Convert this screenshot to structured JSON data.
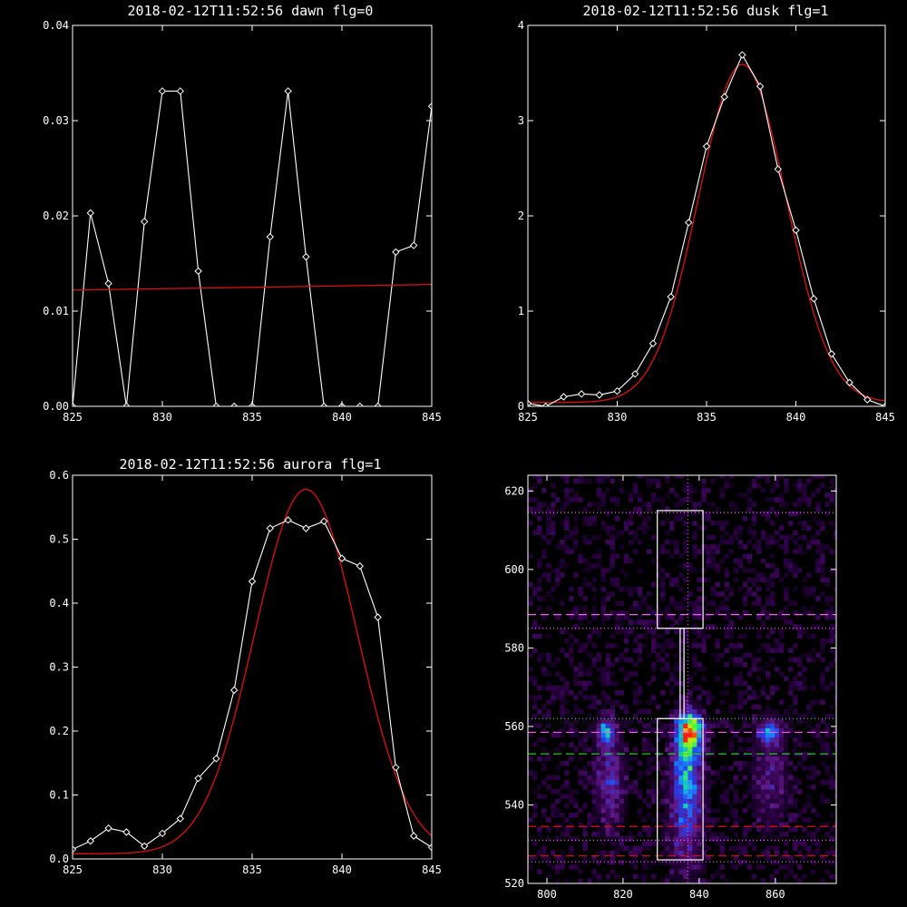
{
  "colors": {
    "background": "#000000",
    "foreground": "#ffffff",
    "fit": "#e01010",
    "green": "#22dd22",
    "magenta": "#ff55ff"
  },
  "chart_data": [
    {
      "type": "line",
      "title": "2018-02-12T11:52:56 dawn flg=0",
      "xlim": [
        825,
        845
      ],
      "ylim": [
        0,
        0.04
      ],
      "xticks": [
        825,
        830,
        835,
        840,
        845
      ],
      "yticks": [
        0,
        0.01,
        0.02,
        0.03,
        0.04
      ],
      "ytick_labels": [
        "0.00",
        "0.01",
        "0.02",
        "0.03",
        "0.04"
      ],
      "series": [
        {
          "kind": "data",
          "color": "#ffffff",
          "marker": "diamond",
          "x": [
            825,
            826,
            827,
            828,
            829,
            830,
            831,
            832,
            833,
            834,
            835,
            836,
            837,
            838,
            839,
            840,
            841,
            842,
            843,
            844,
            845
          ],
          "y": [
            0.0,
            0.0203,
            0.0129,
            0.0,
            0.0194,
            0.0331,
            0.0331,
            0.0142,
            0.0,
            0.0,
            0.0,
            0.0178,
            0.0331,
            0.0157,
            0.0,
            0.0,
            0.0,
            0.0,
            0.0162,
            0.0169,
            0.0315
          ]
        },
        {
          "kind": "fit",
          "color": "#e01010",
          "x": [
            825,
            845
          ],
          "y": [
            0.0122,
            0.0128
          ]
        }
      ]
    },
    {
      "type": "line",
      "title": "2018-02-12T11:52:56 dusk flg=1",
      "xlim": [
        825,
        845
      ],
      "ylim": [
        0,
        4
      ],
      "xticks": [
        825,
        830,
        835,
        840,
        845
      ],
      "yticks": [
        0,
        1,
        2,
        3,
        4
      ],
      "ytick_labels": [
        "0",
        "1",
        "2",
        "3",
        "4"
      ],
      "series": [
        {
          "kind": "data",
          "color": "#ffffff",
          "marker": "diamond",
          "x": [
            825,
            826,
            827,
            828,
            829,
            830,
            831,
            832,
            833,
            834,
            835,
            836,
            837,
            838,
            839,
            840,
            841,
            842,
            843,
            844,
            845
          ],
          "y": [
            0.03,
            0.0,
            0.1,
            0.13,
            0.12,
            0.16,
            0.34,
            0.66,
            1.15,
            1.93,
            2.73,
            3.25,
            3.69,
            3.36,
            2.49,
            1.85,
            1.13,
            0.55,
            0.25,
            0.07,
            0.0
          ],
          "fit": {
            "amplitude": 3.55,
            "center": 837.0,
            "sigma": 2.45,
            "offset": 0.04
          }
        }
      ]
    },
    {
      "type": "line",
      "title": "2018-02-12T11:52:56 aurora flg=1",
      "xlim": [
        825,
        845
      ],
      "ylim": [
        0,
        0.6
      ],
      "xticks": [
        825,
        830,
        835,
        840,
        845
      ],
      "yticks": [
        0,
        0.1,
        0.2,
        0.3,
        0.4,
        0.5,
        0.6
      ],
      "ytick_labels": [
        "0.0",
        "0.1",
        "0.2",
        "0.3",
        "0.4",
        "0.5",
        "0.6"
      ],
      "series": [
        {
          "kind": "data",
          "color": "#ffffff",
          "marker": "diamond",
          "x": [
            825,
            826,
            827,
            828,
            829,
            830,
            831,
            832,
            833,
            834,
            835,
            836,
            837,
            838,
            839,
            840,
            841,
            842,
            843,
            844,
            845
          ],
          "y": [
            0.015,
            0.028,
            0.048,
            0.042,
            0.02,
            0.04,
            0.063,
            0.126,
            0.157,
            0.264,
            0.434,
            0.517,
            0.53,
            0.517,
            0.528,
            0.47,
            0.458,
            0.378,
            0.143,
            0.036,
            0.018
          ],
          "fit": {
            "amplitude": 0.57,
            "center": 838.0,
            "sigma": 2.85,
            "offset": 0.008
          }
        }
      ]
    },
    {
      "type": "heatmap",
      "xlim": [
        795,
        876
      ],
      "ylim": [
        520,
        624
      ],
      "xticks": [
        800,
        820,
        840,
        860
      ],
      "yticks": [
        520,
        540,
        560,
        580,
        600,
        620
      ],
      "spots": [
        {
          "x": 815,
          "y": 558,
          "sx": 1.6,
          "sy": 2.2,
          "value": 0.55
        },
        {
          "x": 816,
          "y": 546,
          "sx": 2.5,
          "sy": 8,
          "value": 0.28
        },
        {
          "x": 837,
          "y": 558,
          "sx": 2.2,
          "sy": 3.2,
          "value": 1.0
        },
        {
          "x": 836,
          "y": 548,
          "sx": 2.4,
          "sy": 7,
          "value": 0.55
        },
        {
          "x": 836,
          "y": 534,
          "sx": 3.0,
          "sy": 8,
          "value": 0.25
        },
        {
          "x": 858,
          "y": 558,
          "sx": 2.2,
          "sy": 2.5,
          "value": 0.42
        },
        {
          "x": 858,
          "y": 545,
          "sx": 3.0,
          "sy": 8,
          "value": 0.18
        }
      ],
      "boxes": [
        {
          "x": [
            829,
            841
          ],
          "y": [
            585,
            615
          ]
        },
        {
          "x": [
            829,
            841
          ],
          "y": [
            526,
            562
          ]
        }
      ],
      "connector_x": [
        835,
        836
      ],
      "connector_y": [
        562,
        585
      ],
      "vline_x": 837,
      "hlines": [
        {
          "y": 614.5,
          "color": "#ff55ff",
          "style": "dotted"
        },
        {
          "y": 588.5,
          "color": "#ff55ff",
          "style": "dashed"
        },
        {
          "y": 585,
          "color": "#ff55ff",
          "style": "dotted"
        },
        {
          "y": 562,
          "color": "#22dd22",
          "style": "dotted"
        },
        {
          "y": 558.5,
          "color": "#ff55ff",
          "style": "dashed"
        },
        {
          "y": 553,
          "color": "#22dd22",
          "style": "dashed"
        },
        {
          "y": 534.5,
          "color": "#e01010",
          "style": "dashed"
        },
        {
          "y": 531,
          "color": "#ff55ff",
          "style": "dotted"
        },
        {
          "y": 527,
          "color": "#e01010",
          "style": "dashed"
        },
        {
          "y": 525.5,
          "color": "#ff55ff",
          "style": "dotted"
        }
      ]
    }
  ]
}
